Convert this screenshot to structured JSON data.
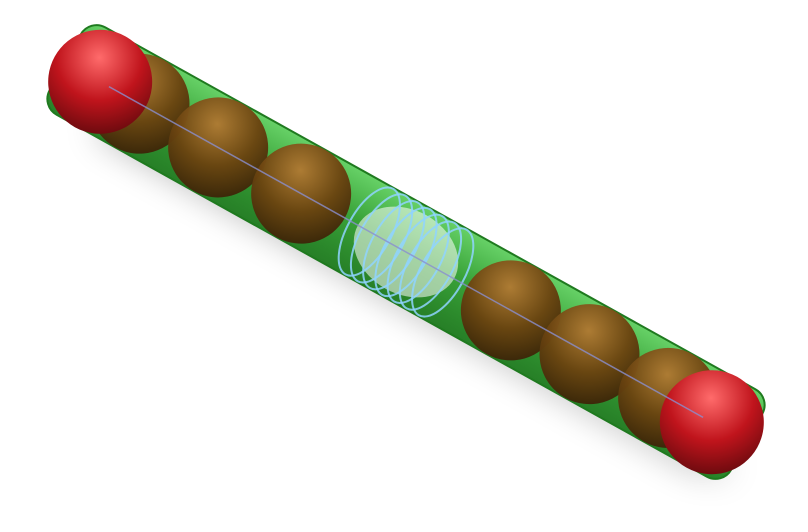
{
  "scene": {
    "subject": "ball-chain-in-tube",
    "colors": {
      "background": "#ffffff",
      "tube_fill": "#2f9e2f",
      "tube_edge": "#1f7a1f",
      "ball_base": "#6b4410",
      "ball_highlight": "#b07a33",
      "ball_dark": "#3a2408",
      "endcap_base": "#c0141c",
      "endcap_highlight": "#ff6b6b",
      "endcap_dark": "#6a0a0e",
      "spring_stroke": "#8fd3ff",
      "axis_line": "#8a8fd0",
      "shadow": "#000000"
    },
    "counts": {
      "balls": 6,
      "spring_coils": 7,
      "end_caps": 2
    }
  }
}
